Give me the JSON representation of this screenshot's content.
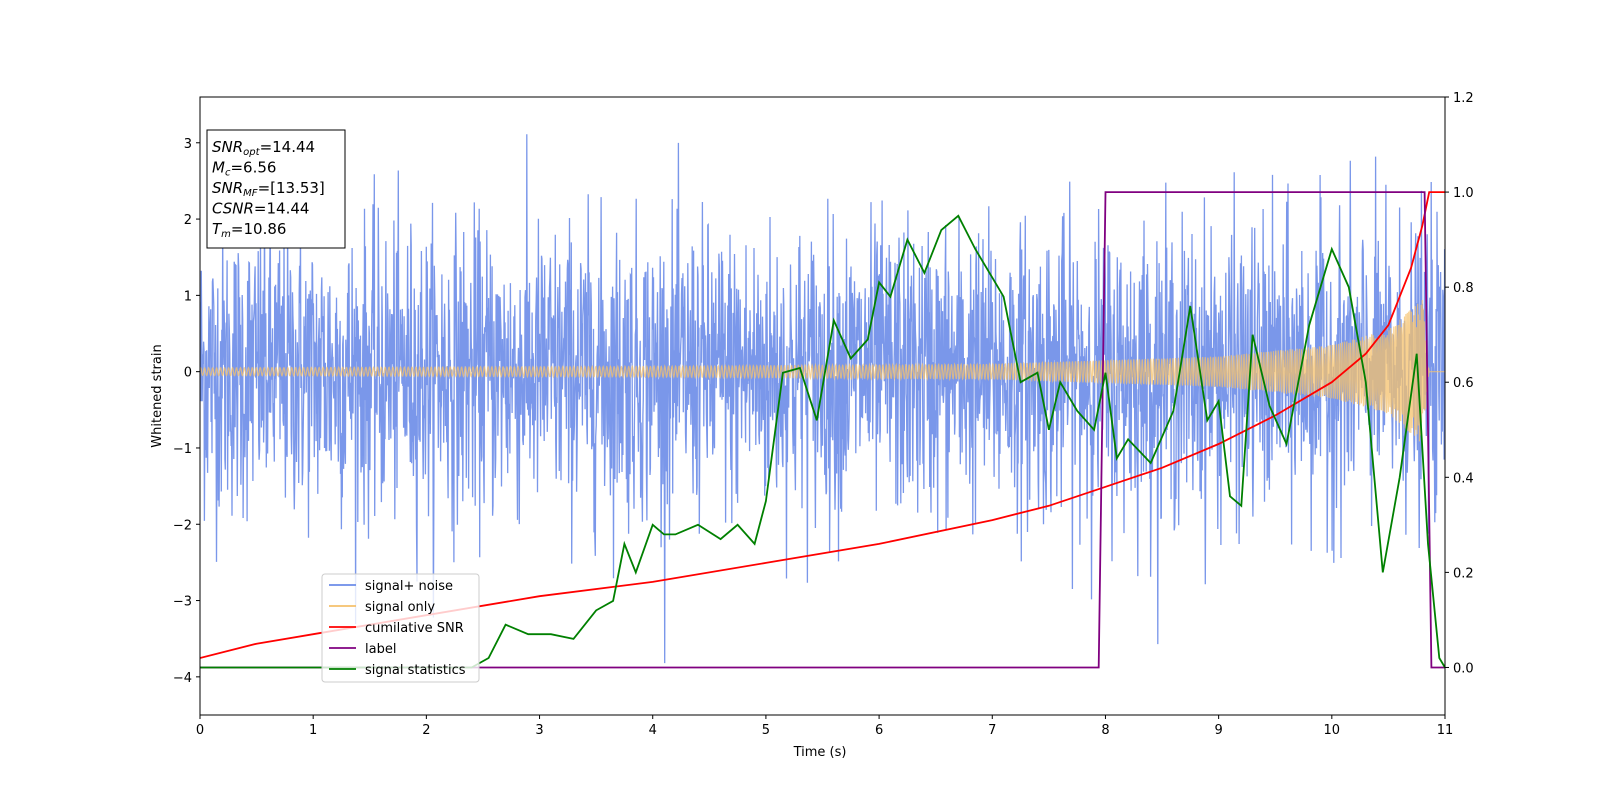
{
  "chart_data": {
    "type": "line",
    "xlabel": "Time (s)",
    "ylabel": "Whitened strain",
    "xlim": [
      0,
      11
    ],
    "ylim": [
      -4.5,
      3.6
    ],
    "y2lim": [
      -0.1,
      1.2
    ],
    "x_ticks": [
      "0",
      "1",
      "2",
      "3",
      "4",
      "5",
      "6",
      "7",
      "8",
      "9",
      "10",
      "11"
    ],
    "y_ticks": [
      "−4",
      "−3",
      "−2",
      "−1",
      "0",
      "1",
      "2",
      "3"
    ],
    "y2_ticks": [
      "0.0",
      "0.2",
      "0.4",
      "0.6",
      "0.8",
      "1.0",
      "1.2"
    ],
    "legend_position": "lower-left",
    "annotation": [
      {
        "name": "SNR",
        "sub": "opt",
        "value": "=14.44"
      },
      {
        "name": "M",
        "sub": "c",
        "value": "=6.56"
      },
      {
        "name": "SNR",
        "sub": "MF",
        "value": "=[13.53]"
      },
      {
        "name": "CSNR",
        "sub": "",
        "value": "=14.44"
      },
      {
        "name": "T",
        "sub": "m",
        "value": "=10.86"
      }
    ],
    "series": [
      {
        "name": "signal+ noise",
        "color": "#6b8ce8",
        "axis": "left",
        "kind": "noise",
        "description_values": {
          "std_approx": 0.9,
          "x_end": 11
        }
      },
      {
        "name": "signal only",
        "color": "#f5c16c",
        "axis": "left",
        "kind": "chirp",
        "envelope": {
          "x": [
            0,
            4,
            7,
            9,
            10,
            10.5,
            10.8,
            10.86
          ],
          "amp": [
            0.05,
            0.07,
            0.1,
            0.2,
            0.35,
            0.55,
            0.95,
            0.0
          ]
        }
      },
      {
        "name": "cumilative SNR",
        "color": "#ff0000",
        "axis": "right",
        "x": [
          0,
          0.5,
          1,
          2,
          3,
          4,
          5,
          6,
          7,
          7.5,
          8,
          8.5,
          9,
          9.5,
          10,
          10.3,
          10.5,
          10.7,
          10.8,
          10.86,
          11
        ],
        "y": [
          0.02,
          0.05,
          0.07,
          0.11,
          0.15,
          0.18,
          0.22,
          0.26,
          0.31,
          0.34,
          0.38,
          0.42,
          0.47,
          0.53,
          0.6,
          0.66,
          0.72,
          0.84,
          0.93,
          1.0,
          1.0
        ]
      },
      {
        "name": "label",
        "color": "#800080",
        "axis": "right",
        "x": [
          0,
          7.94,
          8.0,
          10.82,
          10.88,
          11
        ],
        "y": [
          0.0,
          0.0,
          1.0,
          1.0,
          0.0,
          0.0
        ]
      },
      {
        "name": "signal statistics",
        "color": "#008000",
        "axis": "right",
        "x": [
          0,
          0.5,
          1,
          1.5,
          2,
          2.4,
          2.55,
          2.7,
          2.9,
          3.1,
          3.3,
          3.5,
          3.65,
          3.75,
          3.85,
          4.0,
          4.1,
          4.2,
          4.4,
          4.6,
          4.75,
          4.9,
          5.0,
          5.15,
          5.3,
          5.45,
          5.6,
          5.75,
          5.9,
          6.0,
          6.1,
          6.25,
          6.4,
          6.55,
          6.7,
          6.85,
          7.0,
          7.1,
          7.25,
          7.4,
          7.5,
          7.6,
          7.75,
          7.9,
          8.0,
          8.1,
          8.2,
          8.4,
          8.6,
          8.75,
          8.9,
          9.0,
          9.1,
          9.2,
          9.3,
          9.45,
          9.6,
          9.8,
          10.0,
          10.15,
          10.3,
          10.45,
          10.6,
          10.75,
          10.85,
          10.95,
          11
        ],
        "y": [
          0.0,
          0.0,
          0.0,
          0.0,
          0.0,
          0.0,
          0.02,
          0.09,
          0.07,
          0.07,
          0.06,
          0.12,
          0.14,
          0.26,
          0.2,
          0.3,
          0.28,
          0.28,
          0.3,
          0.27,
          0.3,
          0.26,
          0.35,
          0.62,
          0.63,
          0.52,
          0.73,
          0.65,
          0.69,
          0.81,
          0.78,
          0.9,
          0.83,
          0.92,
          0.95,
          0.88,
          0.82,
          0.78,
          0.6,
          0.62,
          0.5,
          0.6,
          0.54,
          0.5,
          0.62,
          0.44,
          0.48,
          0.43,
          0.54,
          0.76,
          0.52,
          0.56,
          0.36,
          0.34,
          0.7,
          0.55,
          0.47,
          0.72,
          0.88,
          0.8,
          0.6,
          0.2,
          0.4,
          0.66,
          0.26,
          0.02,
          0.0
        ]
      }
    ]
  }
}
